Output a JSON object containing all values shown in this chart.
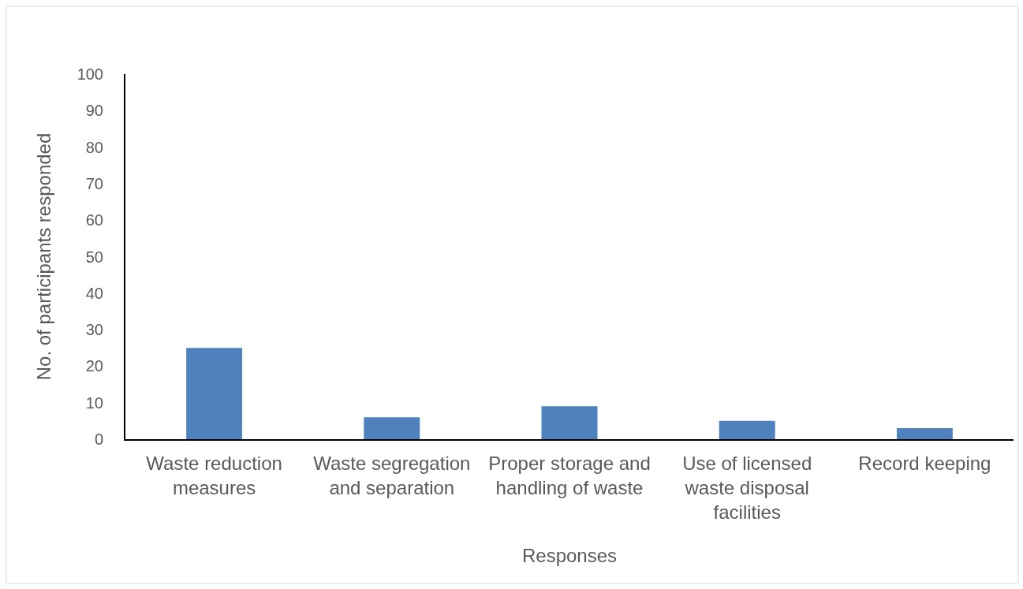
{
  "chart_data": {
    "type": "bar",
    "xlabel": "Responses",
    "ylabel": "No. of participants responded",
    "categories": [
      "Waste reduction measures",
      "Waste segregation and separation",
      "Proper storage and handling of waste",
      "Use of licensed waste disposal facilities",
      "Record keeping"
    ],
    "values": [
      25,
      6,
      9,
      5,
      3
    ],
    "color": "#4f81bd",
    "ylim": [
      0,
      100
    ],
    "yticks": [
      0,
      10,
      20,
      30,
      40,
      50,
      60,
      70,
      80,
      90,
      100
    ],
    "grid": false
  }
}
